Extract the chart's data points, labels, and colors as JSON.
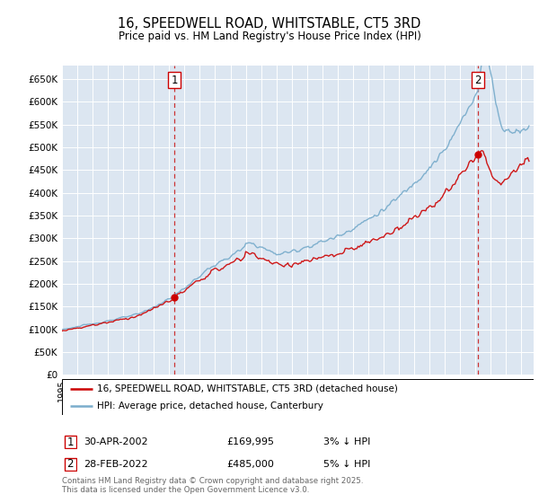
{
  "title": "16, SPEEDWELL ROAD, WHITSTABLE, CT5 3RD",
  "subtitle": "Price paid vs. HM Land Registry's House Price Index (HPI)",
  "ylabel_ticks": [
    "£0",
    "£50K",
    "£100K",
    "£150K",
    "£200K",
    "£250K",
    "£300K",
    "£350K",
    "£400K",
    "£450K",
    "£500K",
    "£550K",
    "£600K",
    "£650K"
  ],
  "ytick_values": [
    0,
    50000,
    100000,
    150000,
    200000,
    250000,
    300000,
    350000,
    400000,
    450000,
    500000,
    550000,
    600000,
    650000
  ],
  "ylim": [
    0,
    680000
  ],
  "xlim": [
    1995,
    2025.8
  ],
  "background_color": "#dce6f1",
  "grid_color": "#ffffff",
  "sale1": {
    "date_num": 2002.33,
    "price": 169995,
    "label": "1",
    "date_str": "30-APR-2002",
    "pct": "3%"
  },
  "sale2": {
    "date_num": 2022.17,
    "price": 485000,
    "label": "2",
    "date_str": "28-FEB-2022",
    "pct": "5%"
  },
  "legend_line1": "16, SPEEDWELL ROAD, WHITSTABLE, CT5 3RD (detached house)",
  "legend_line2": "HPI: Average price, detached house, Canterbury",
  "footnote": "Contains HM Land Registry data © Crown copyright and database right 2025.\nThis data is licensed under the Open Government Licence v3.0.",
  "line_color_red": "#cc0000",
  "line_color_blue": "#7aadcc"
}
